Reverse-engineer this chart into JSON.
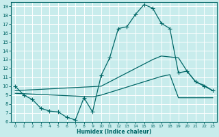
{
  "bg_color": "#c8ecec",
  "grid_color": "#d0e8e8",
  "line_color": "#006666",
  "xlabel": "Humidex (Indice chaleur)",
  "xlim": [
    -0.5,
    23.5
  ],
  "ylim": [
    6,
    19.5
  ],
  "xticks": [
    0,
    1,
    2,
    3,
    4,
    5,
    6,
    7,
    8,
    9,
    10,
    11,
    12,
    13,
    14,
    15,
    16,
    17,
    18,
    19,
    20,
    21,
    22,
    23
  ],
  "yticks": [
    6,
    7,
    8,
    9,
    10,
    11,
    12,
    13,
    14,
    15,
    16,
    17,
    18,
    19
  ],
  "curve1_x": [
    0,
    1,
    2,
    3,
    4,
    5,
    6,
    7,
    8,
    9,
    10,
    11,
    12,
    13,
    14,
    15,
    16,
    17,
    18,
    19,
    20,
    21,
    22,
    23
  ],
  "curve1_y": [
    10.0,
    9.0,
    8.5,
    7.5,
    7.2,
    7.1,
    6.5,
    6.2,
    8.7,
    7.1,
    11.2,
    13.2,
    16.5,
    16.7,
    18.1,
    19.2,
    18.8,
    17.1,
    16.5,
    11.5,
    11.7,
    10.5,
    10.0,
    9.5
  ],
  "curve2_x": [
    0,
    10,
    11,
    12,
    13,
    14,
    15,
    16,
    17,
    18,
    19,
    20,
    21,
    22,
    23
  ],
  "curve2_y": [
    9.5,
    10.0,
    10.5,
    11.0,
    11.5,
    12.0,
    12.5,
    13.0,
    13.4,
    13.3,
    13.2,
    11.7,
    10.5,
    10.1,
    9.5
  ],
  "curve3_x": [
    0,
    9,
    10,
    11,
    12,
    13,
    14,
    15,
    16,
    17,
    18,
    19,
    20,
    21,
    22,
    23
  ],
  "curve3_y": [
    9.2,
    8.8,
    9.0,
    9.3,
    9.6,
    9.9,
    10.2,
    10.5,
    10.8,
    11.1,
    11.3,
    8.7,
    8.7,
    8.7,
    8.7,
    8.7
  ]
}
